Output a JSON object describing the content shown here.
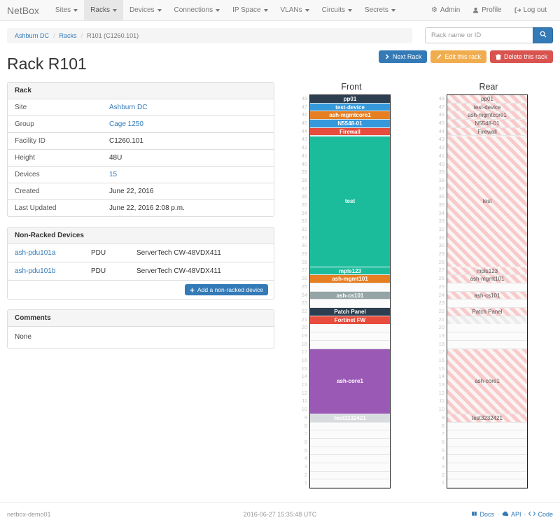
{
  "navbar": {
    "brand": "NetBox",
    "items": [
      {
        "label": "Sites",
        "active": false
      },
      {
        "label": "Racks",
        "active": true
      },
      {
        "label": "Devices",
        "active": false
      },
      {
        "label": "Connections",
        "active": false
      },
      {
        "label": "IP Space",
        "active": false
      },
      {
        "label": "VLANs",
        "active": false
      },
      {
        "label": "Circuits",
        "active": false
      },
      {
        "label": "Secrets",
        "active": false
      }
    ],
    "admin_label": "Admin",
    "profile_label": "Profile",
    "logout_label": "Log out"
  },
  "breadcrumb": {
    "items": [
      "Ashburn DC",
      "Racks",
      "R101 (C1260.101)"
    ]
  },
  "search": {
    "placeholder": "Rack name or ID"
  },
  "page": {
    "title": "Rack R101"
  },
  "actions": {
    "next_label": "Next Rack",
    "edit_label": "Edit this rack",
    "delete_label": "Delete this rack"
  },
  "rack_panel": {
    "title": "Rack",
    "rows": [
      {
        "label": "Site",
        "value": "Ashburn DC",
        "link": true
      },
      {
        "label": "Group",
        "value": "Cage 1250",
        "link": true
      },
      {
        "label": "Facility ID",
        "value": "C1260.101",
        "link": false
      },
      {
        "label": "Height",
        "value": "48U",
        "link": false
      },
      {
        "label": "Devices",
        "value": "15",
        "link": true
      },
      {
        "label": "Created",
        "value": "June 22, 2016",
        "link": false
      },
      {
        "label": "Last Updated",
        "value": "June 22, 2016 2:08 p.m.",
        "link": false
      }
    ]
  },
  "non_racked": {
    "title": "Non-Racked Devices",
    "rows": [
      {
        "name": "ash-pdu101a",
        "role": "PDU",
        "model": "ServerTech CW-48VDX411"
      },
      {
        "name": "ash-pdu101b",
        "role": "PDU",
        "model": "ServerTech CW-48VDX411"
      }
    ],
    "add_button_label": "Add a non-racked device"
  },
  "comments": {
    "title": "Comments",
    "body": "None"
  },
  "elevation": {
    "front_title": "Front",
    "rear_title": "Rear",
    "units": 48,
    "devices": [
      {
        "name": "pp01",
        "top_u": 48,
        "u_height": 1,
        "color": "#2c3e50"
      },
      {
        "name": "test-device",
        "top_u": 47,
        "u_height": 1,
        "color": "#3498db"
      },
      {
        "name": "ash-mgmtcore1",
        "top_u": 46,
        "u_height": 1,
        "color": "#e67e22"
      },
      {
        "name": "N5548-01",
        "top_u": 45,
        "u_height": 1,
        "color": "#3498db"
      },
      {
        "name": "Firewall",
        "top_u": 44,
        "u_height": 1,
        "color": "#e74c3c"
      },
      {
        "name": "test",
        "top_u": 43,
        "u_height": 16,
        "color": "#1abc9c"
      },
      {
        "name": "mpls123",
        "top_u": 27,
        "u_height": 1,
        "color": "#1abc9c"
      },
      {
        "name": "ash-mgmt101",
        "top_u": 26,
        "u_height": 1,
        "color": "#e67e22"
      },
      {
        "name": "ash-cs101",
        "top_u": 24,
        "u_height": 1,
        "color": "#95a5a6"
      },
      {
        "name": "Patch Panel",
        "top_u": 22,
        "u_height": 1,
        "color": "#2c3e50"
      },
      {
        "name": "Fortinet FW",
        "top_u": 21,
        "u_height": 1,
        "color": "#e74c3c",
        "rear_style": "gray",
        "rear_label_hidden": true
      },
      {
        "name": "ash-core1",
        "top_u": 17,
        "u_height": 8,
        "color": "#9b59b6"
      },
      {
        "name": "test3232421",
        "top_u": 9,
        "u_height": 1,
        "color": "#d8dcde"
      }
    ]
  },
  "footer": {
    "hostname": "netbox-demo01",
    "timestamp": "2016-06-27 15:35:48 UTC",
    "docs_label": "Docs",
    "api_label": "API",
    "code_label": "Code"
  },
  "colors": {
    "link": "#337ab7",
    "primary": "#337ab7",
    "warning": "#f0ad4e",
    "danger": "#d9534f"
  }
}
